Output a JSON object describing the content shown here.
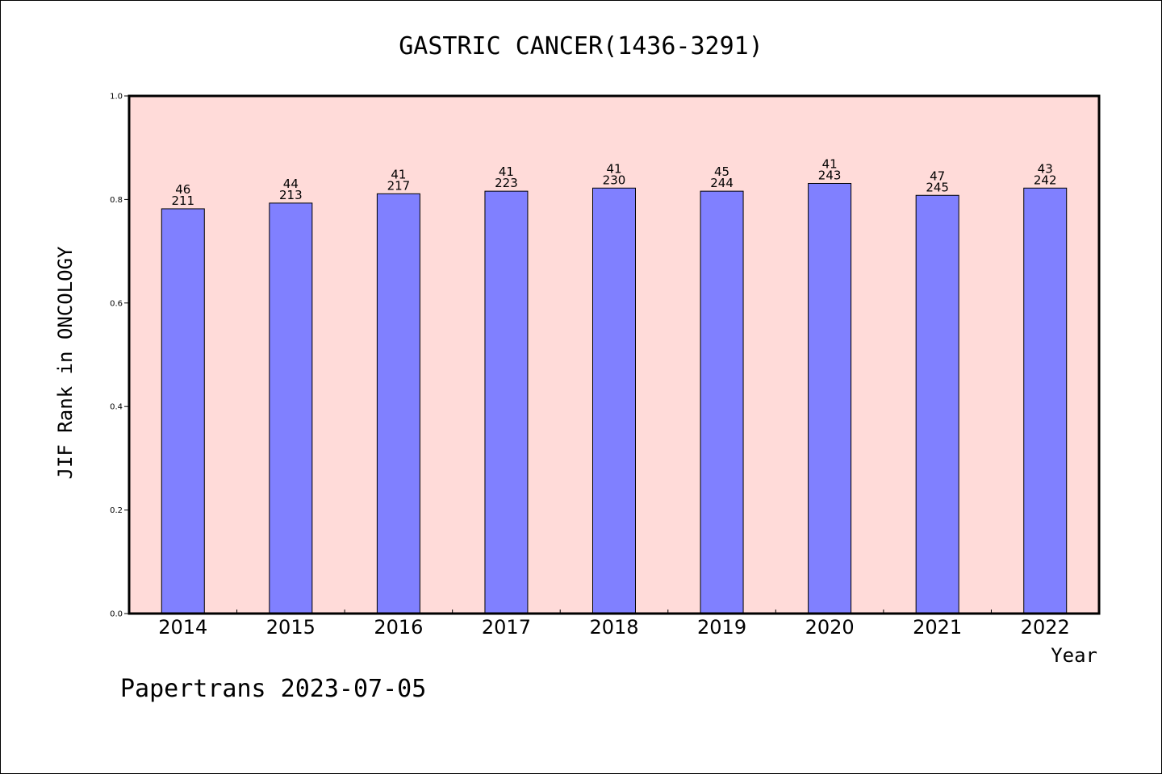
{
  "chart_data": {
    "type": "bar",
    "title": "GASTRIC CANCER(1436-3291)",
    "xlabel": "Year",
    "ylabel": "JIF Rank in ONCOLOGY",
    "categories": [
      "2014",
      "2015",
      "2016",
      "2017",
      "2018",
      "2019",
      "2020",
      "2021",
      "2022"
    ],
    "values": [
      0.782,
      0.793,
      0.811,
      0.816,
      0.822,
      0.816,
      0.831,
      0.808,
      0.822
    ],
    "rank": [
      "46",
      "44",
      "41",
      "41",
      "41",
      "45",
      "41",
      "47",
      "43"
    ],
    "total": [
      "211",
      "213",
      "217",
      "223",
      "230",
      "244",
      "243",
      "245",
      "242"
    ],
    "ylim": [
      0,
      1.0
    ],
    "yticks": [
      "0.0",
      "0.2",
      "0.4",
      "0.6",
      "0.8",
      "1.0"
    ],
    "grid": false,
    "colors": {
      "bar": "#8080ff",
      "plot_background": "#ffdbd9",
      "frame": "#000000"
    }
  },
  "footer": {
    "watermark": "Papertrans 2023-07-05"
  }
}
